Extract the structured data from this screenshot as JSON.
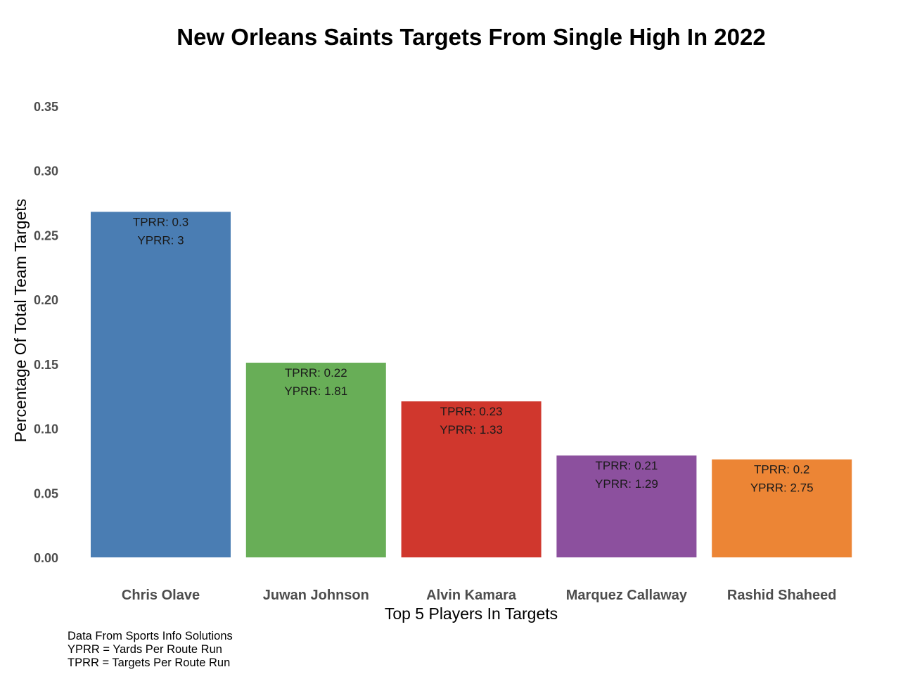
{
  "chart_data": {
    "type": "bar",
    "title": "New Orleans Saints Targets From Single High In 2022",
    "xlabel": "Top 5 Players In Targets",
    "ylabel": "Percentage Of Total Team Targets",
    "ylim": [
      0,
      0.35
    ],
    "yticks": [
      "0.00",
      "0.05",
      "0.10",
      "0.15",
      "0.20",
      "0.25",
      "0.30",
      "0.35"
    ],
    "grid": false,
    "categories": [
      "Chris Olave",
      "Juwan Johnson",
      "Alvin Kamara",
      "Marquez Callaway",
      "Rashid Shaheed"
    ],
    "values": [
      0.268,
      0.151,
      0.121,
      0.079,
      0.076
    ],
    "colors": [
      "#4a7db3",
      "#68ae57",
      "#d0372d",
      "#8c509e",
      "#ec8535"
    ],
    "annotations": [
      {
        "tprr": "TPRR: 0.3",
        "yprr": "YPRR: 3"
      },
      {
        "tprr": "TPRR: 0.22",
        "yprr": "YPRR: 1.81"
      },
      {
        "tprr": "TPRR: 0.23",
        "yprr": "YPRR: 1.33"
      },
      {
        "tprr": "TPRR: 0.21",
        "yprr": "YPRR: 1.29"
      },
      {
        "tprr": "TPRR: 0.2",
        "yprr": "YPRR: 2.75"
      }
    ]
  },
  "caption": {
    "lines": [
      "Data From Sports Info Solutions",
      "YPRR = Yards Per Route Run",
      "TPRR = Targets Per Route Run"
    ]
  }
}
